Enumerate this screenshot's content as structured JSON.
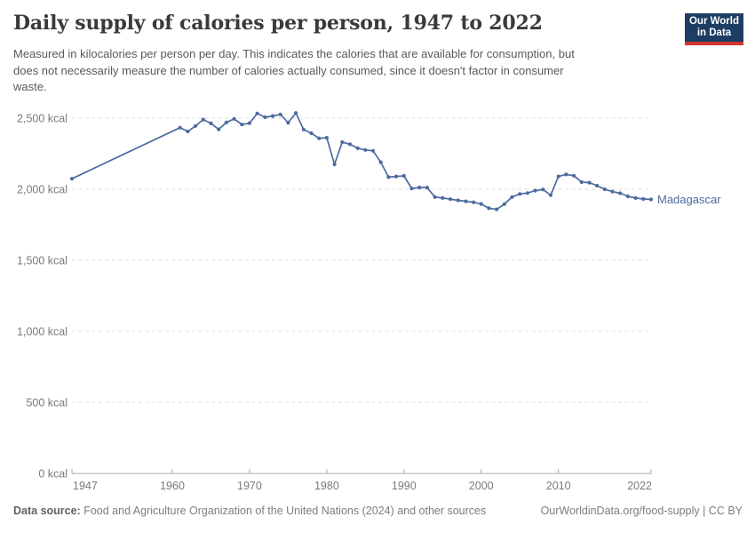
{
  "header": {
    "title": "Daily supply of calories per person, 1947 to 2022",
    "subtitle_lines": [
      "Measured in kilocalories per person per day. This indicates the calories that are available for consumption, but",
      "does not necessarily measure the number of calories actually consumed, since it doesn't factor in consumer",
      "waste."
    ]
  },
  "logo": {
    "line1": "Our World",
    "line2": "in Data",
    "bg_color": "#1d3d63",
    "accent_color": "#d2352b"
  },
  "chart_data": {
    "type": "line",
    "title": "Daily supply of calories per person, 1947 to 2022",
    "unit": "kcal",
    "grid": true,
    "legend": "inline-end-label",
    "x_axis": {
      "min": 1947,
      "max": 2022,
      "ticks": [
        1947,
        1960,
        1970,
        1980,
        1990,
        2000,
        2010,
        2022
      ]
    },
    "y_axis": {
      "min": 0,
      "max": 2500,
      "interval": 500,
      "tick_labels": [
        "0 kcal",
        "500 kcal",
        "1,000 kcal",
        "1,500 kcal",
        "2,000 kcal",
        "2,500 kcal"
      ]
    },
    "series": [
      {
        "name": "Madagascar",
        "color": "#4c6b9e",
        "points": [
          [
            1947,
            2074
          ],
          [
            1961,
            2433
          ],
          [
            1962,
            2406
          ],
          [
            1963,
            2445
          ],
          [
            1964,
            2490
          ],
          [
            1965,
            2463
          ],
          [
            1966,
            2421
          ],
          [
            1967,
            2470
          ],
          [
            1968,
            2495
          ],
          [
            1969,
            2455
          ],
          [
            1970,
            2465
          ],
          [
            1971,
            2533
          ],
          [
            1972,
            2506
          ],
          [
            1973,
            2515
          ],
          [
            1974,
            2526
          ],
          [
            1975,
            2468
          ],
          [
            1976,
            2536
          ],
          [
            1977,
            2420
          ],
          [
            1978,
            2394
          ],
          [
            1979,
            2358
          ],
          [
            1980,
            2362
          ],
          [
            1981,
            2175
          ],
          [
            1982,
            2331
          ],
          [
            1983,
            2316
          ],
          [
            1984,
            2289
          ],
          [
            1985,
            2276
          ],
          [
            1986,
            2270
          ],
          [
            1987,
            2190
          ],
          [
            1988,
            2085
          ],
          [
            1989,
            2090
          ],
          [
            1990,
            2094
          ],
          [
            1991,
            2005
          ],
          [
            1992,
            2012
          ],
          [
            1993,
            2012
          ],
          [
            1994,
            1945
          ],
          [
            1995,
            1938
          ],
          [
            1996,
            1930
          ],
          [
            1997,
            1922
          ],
          [
            1998,
            1915
          ],
          [
            1999,
            1908
          ],
          [
            2000,
            1896
          ],
          [
            2001,
            1866
          ],
          [
            2002,
            1858
          ],
          [
            2003,
            1895
          ],
          [
            2004,
            1945
          ],
          [
            2005,
            1967
          ],
          [
            2006,
            1973
          ],
          [
            2007,
            1990
          ],
          [
            2008,
            1998
          ],
          [
            2009,
            1958
          ],
          [
            2010,
            2090
          ],
          [
            2011,
            2104
          ],
          [
            2012,
            2095
          ],
          [
            2013,
            2050
          ],
          [
            2014,
            2046
          ],
          [
            2015,
            2025
          ],
          [
            2016,
            2000
          ],
          [
            2017,
            1983
          ],
          [
            2018,
            1972
          ],
          [
            2019,
            1950
          ],
          [
            2020,
            1938
          ],
          [
            2021,
            1931
          ],
          [
            2022,
            1928
          ]
        ]
      }
    ],
    "colors": {
      "gridline": "#dcdcdc",
      "axis": "#a8a8a8",
      "tick_label": "#7a7a7a"
    }
  },
  "footer": {
    "source_label": "Data source:",
    "source_text": " Food and Agriculture Organization of the United Nations (2024) and other sources",
    "link_text": "OurWorldinData.org/food-supply | CC BY"
  }
}
